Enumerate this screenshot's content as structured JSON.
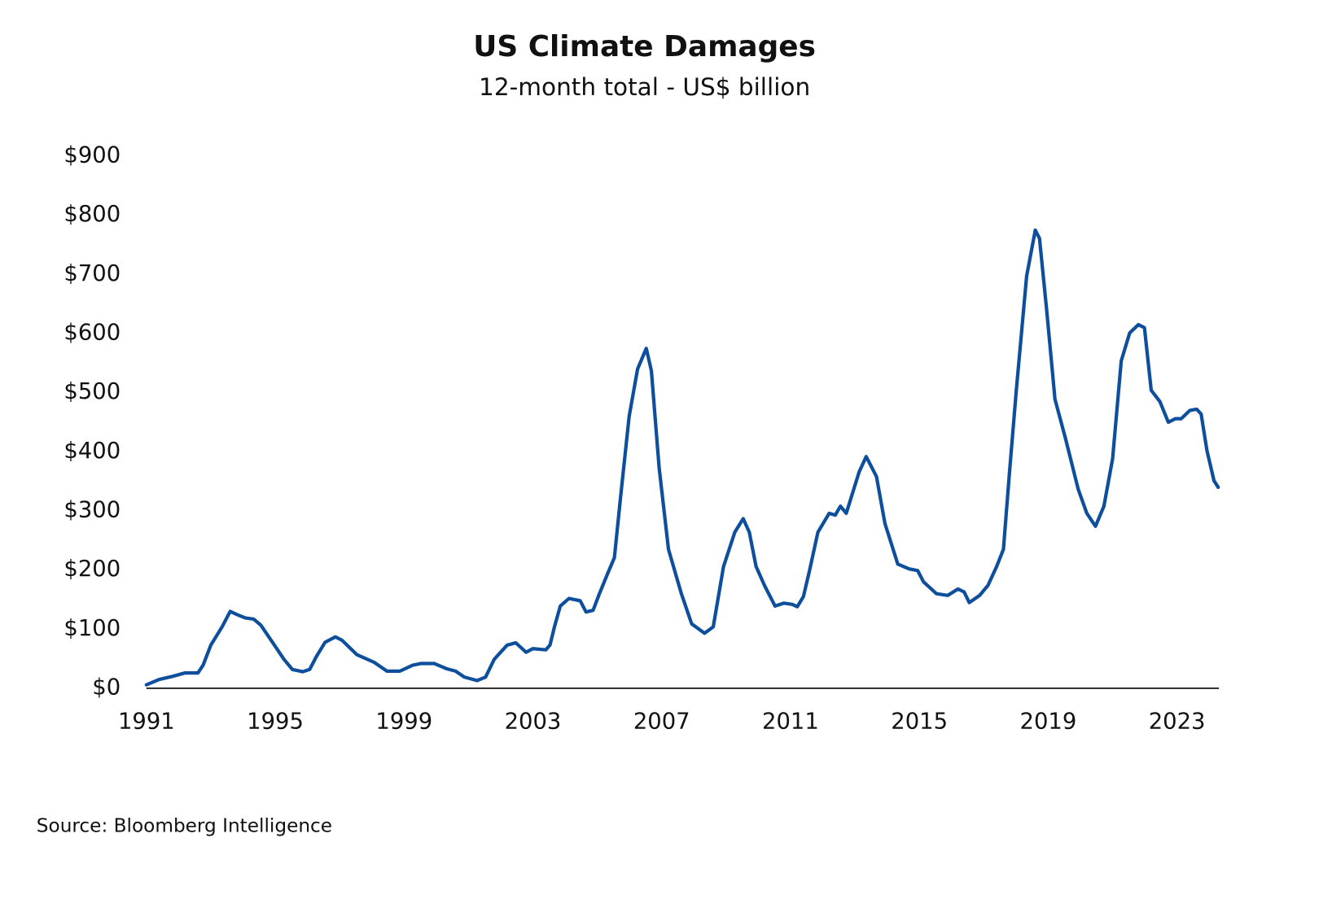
{
  "chart_data": {
    "type": "line",
    "title": "US Climate Damages",
    "subtitle": "12-month total - US$ billion",
    "source": "Source: Bloomberg Intelligence",
    "xlim": [
      1991,
      2024.3
    ],
    "xticks": [
      1991,
      1995,
      1999,
      2003,
      2007,
      2011,
      2015,
      2019,
      2023
    ],
    "ylim": [
      0,
      900
    ],
    "yticks": [
      {
        "value": 0,
        "label": "$0"
      },
      {
        "value": 100,
        "label": "$100"
      },
      {
        "value": 200,
        "label": "$200"
      },
      {
        "value": 300,
        "label": "$300"
      },
      {
        "value": 400,
        "label": "$400"
      },
      {
        "value": 500,
        "label": "$500"
      },
      {
        "value": 600,
        "label": "$600"
      },
      {
        "value": 700,
        "label": "$700"
      },
      {
        "value": 800,
        "label": "$800"
      },
      {
        "value": 900,
        "label": "$900"
      }
    ],
    "series": [
      {
        "color": "#0d4f9c",
        "x": [
          1991.0,
          1991.4,
          1991.8,
          1992.2,
          1992.6,
          1992.76,
          1993.0,
          1993.35,
          1993.6,
          1993.8,
          1994.07,
          1994.33,
          1994.55,
          1994.95,
          1995.27,
          1995.53,
          1995.85,
          1996.07,
          1996.28,
          1996.55,
          1996.87,
          1997.08,
          1997.53,
          1998.07,
          1998.47,
          1998.87,
          1999.27,
          1999.53,
          1999.93,
          2000.33,
          2000.6,
          2000.87,
          2001.27,
          2001.53,
          2001.8,
          2002.2,
          2002.47,
          2002.79,
          2003.0,
          2003.4,
          2003.53,
          2003.67,
          2003.85,
          2004.12,
          2004.47,
          2004.65,
          2004.87,
          2005.05,
          2005.32,
          2005.53,
          2005.72,
          2005.99,
          2006.25,
          2006.52,
          2006.68,
          2006.92,
          2007.21,
          2007.61,
          2007.93,
          2008.33,
          2008.6,
          2008.92,
          2009.27,
          2009.53,
          2009.72,
          2009.93,
          2010.2,
          2010.52,
          2010.79,
          2011.05,
          2011.21,
          2011.4,
          2011.59,
          2011.85,
          2012.2,
          2012.39,
          2012.55,
          2012.73,
          2013.13,
          2013.35,
          2013.67,
          2013.93,
          2014.33,
          2014.68,
          2014.95,
          2015.13,
          2015.53,
          2015.88,
          2016.2,
          2016.39,
          2016.55,
          2016.87,
          2017.13,
          2017.4,
          2017.61,
          2017.8,
          2018.01,
          2018.33,
          2018.6,
          2018.73,
          2018.95,
          2019.21,
          2019.53,
          2019.93,
          2020.2,
          2020.47,
          2020.73,
          2021.0,
          2021.27,
          2021.53,
          2021.8,
          2021.99,
          2022.2,
          2022.47,
          2022.73,
          2022.95,
          2023.13,
          2023.4,
          2023.61,
          2023.75,
          2023.93,
          2024.15,
          2024.28
        ],
        "values": [
          6,
          15,
          20,
          26,
          26,
          39,
          73,
          104,
          130,
          125,
          119,
          117,
          107,
          75,
          49,
          32,
          28,
          32,
          54,
          78,
          87,
          81,
          57,
          44,
          29,
          29,
          39,
          42,
          42,
          33,
          29,
          19,
          13,
          19,
          49,
          73,
          77,
          61,
          67,
          65,
          73,
          104,
          139,
          152,
          148,
          129,
          132,
          158,
          194,
          221,
          322,
          460,
          540,
          575,
          537,
          373,
          235,
          160,
          109,
          93,
          104,
          206,
          264,
          287,
          264,
          206,
          173,
          139,
          144,
          142,
          138,
          155,
          199,
          264,
          296,
          293,
          308,
          296,
          366,
          392,
          358,
          279,
          210,
          202,
          199,
          180,
          160,
          157,
          168,
          163,
          145,
          157,
          174,
          206,
          235,
          366,
          504,
          697,
          775,
          761,
          642,
          489,
          424,
          337,
          296,
          274,
          308,
          388,
          554,
          601,
          615,
          610,
          504,
          485,
          450,
          456,
          456,
          470,
          472,
          464,
          402,
          351,
          340
        ]
      }
    ]
  }
}
